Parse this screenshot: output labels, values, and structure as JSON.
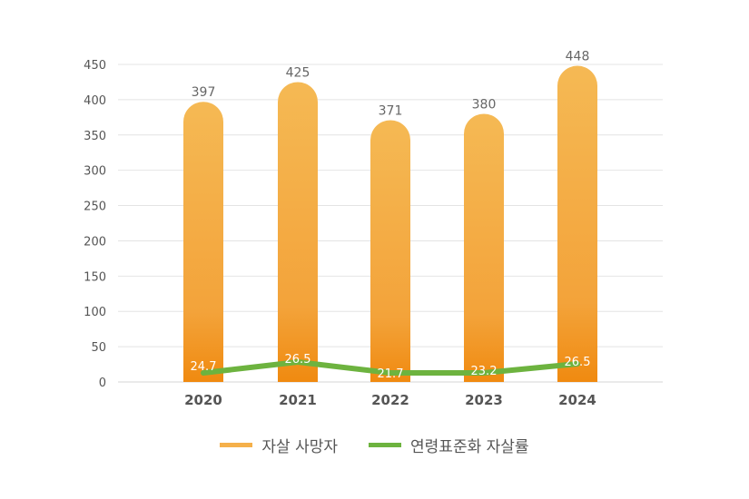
{
  "chart_data": {
    "type": "bar",
    "categories": [
      "2020",
      "2021",
      "2022",
      "2023",
      "2024"
    ],
    "series": [
      {
        "name": "자살 사망자",
        "type": "bar",
        "values": [
          397,
          425,
          371,
          380,
          448
        ],
        "color": "#F5B04A"
      },
      {
        "name": "연령표준화 자살률",
        "type": "line",
        "values": [
          24.7,
          26.5,
          21.7,
          23.2,
          26.5
        ],
        "color": "#6DB33F"
      }
    ],
    "title": "",
    "xlabel": "",
    "ylabel": "",
    "ylim": [
      0,
      450
    ],
    "yticks": [
      0,
      50,
      100,
      150,
      200,
      250,
      300,
      350,
      400,
      450
    ],
    "grid": true,
    "legend_position": "bottom"
  },
  "legend": {
    "bar_label": "자살 사망자",
    "line_label": "연령표준화 자살률"
  }
}
